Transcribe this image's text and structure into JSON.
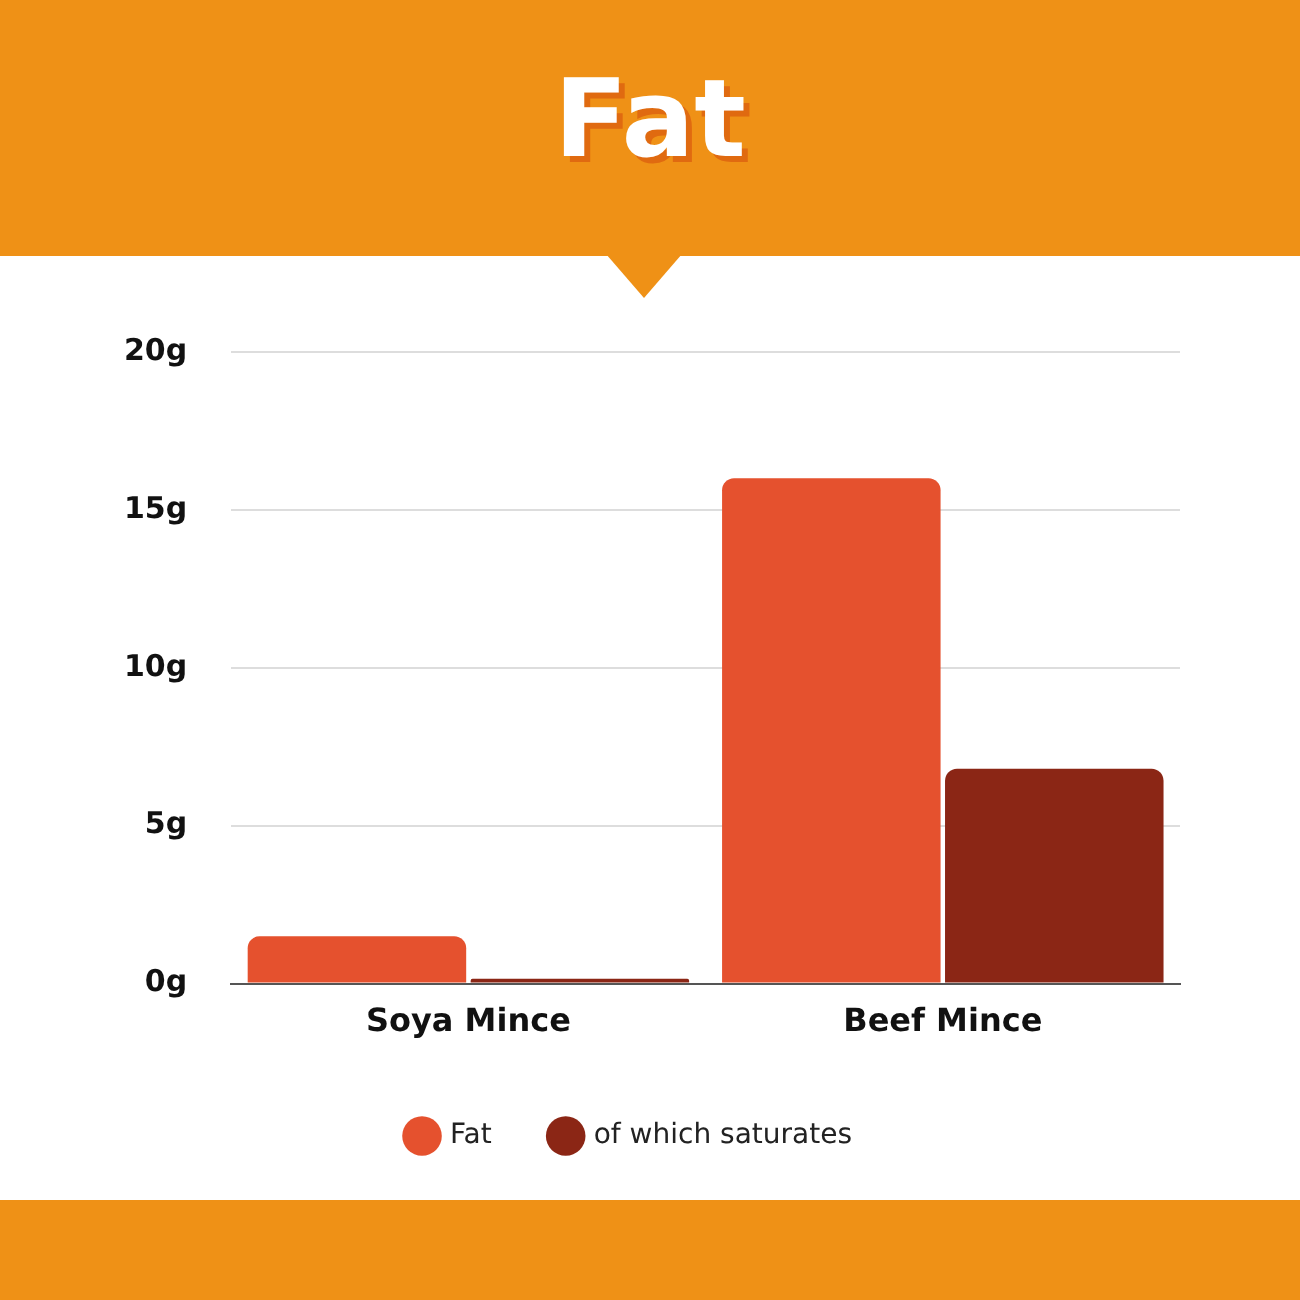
{
  "chart_data": {
    "type": "bar",
    "title": "Fat",
    "categories": [
      "Soya Mince",
      "Beef Mince"
    ],
    "series": [
      {
        "name": "Fat",
        "color": "#e5512e",
        "values": [
          1.5,
          16
        ]
      },
      {
        "name": "of which saturates",
        "color": "#8b2615",
        "values": [
          0.15,
          6.8
        ]
      }
    ],
    "ylim": [
      0,
      20
    ],
    "yticks": [
      {
        "value": 0,
        "label": "0g"
      },
      {
        "value": 5,
        "label": "5g"
      },
      {
        "value": 10,
        "label": "10g"
      },
      {
        "value": 15,
        "label": "15g"
      },
      {
        "value": 20,
        "label": "20g"
      }
    ],
    "grid": "y",
    "legend": "bottom"
  }
}
